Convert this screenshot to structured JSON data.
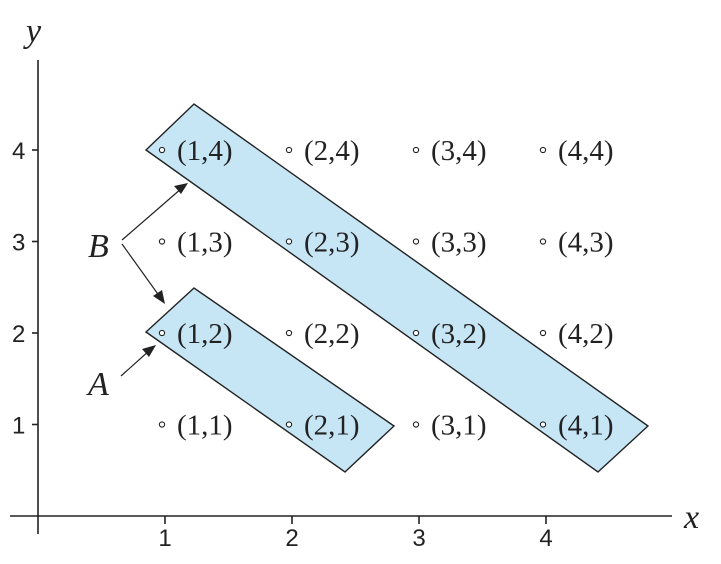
{
  "axes": {
    "x_label": "x",
    "y_label": "y",
    "x_ticks": [
      "1",
      "2",
      "3",
      "4"
    ],
    "y_ticks": [
      "1",
      "2",
      "3",
      "4"
    ]
  },
  "points": [
    {
      "x": 1,
      "y": 1,
      "label": "(1,1)"
    },
    {
      "x": 2,
      "y": 1,
      "label": "(2,1)"
    },
    {
      "x": 3,
      "y": 1,
      "label": "(3,1)"
    },
    {
      "x": 4,
      "y": 1,
      "label": "(4,1)"
    },
    {
      "x": 1,
      "y": 2,
      "label": "(1,2)"
    },
    {
      "x": 2,
      "y": 2,
      "label": "(2,2)"
    },
    {
      "x": 3,
      "y": 2,
      "label": "(3,2)"
    },
    {
      "x": 4,
      "y": 2,
      "label": "(4,2)"
    },
    {
      "x": 1,
      "y": 3,
      "label": "(1,3)"
    },
    {
      "x": 2,
      "y": 3,
      "label": "(2,3)"
    },
    {
      "x": 3,
      "y": 3,
      "label": "(3,3)"
    },
    {
      "x": 4,
      "y": 3,
      "label": "(4,3)"
    },
    {
      "x": 1,
      "y": 4,
      "label": "(1,4)"
    },
    {
      "x": 2,
      "y": 4,
      "label": "(2,4)"
    },
    {
      "x": 3,
      "y": 4,
      "label": "(3,4)"
    },
    {
      "x": 4,
      "y": 4,
      "label": "(4,4)"
    }
  ],
  "sets": [
    {
      "letter": "A",
      "members": [
        [
          1,
          2
        ],
        [
          2,
          1
        ]
      ],
      "color": "#c6e6f6"
    },
    {
      "letter": "B",
      "members": [
        [
          1,
          4
        ],
        [
          2,
          3
        ],
        [
          3,
          2
        ],
        [
          4,
          1
        ]
      ],
      "color": "#c6e6f6"
    }
  ]
}
